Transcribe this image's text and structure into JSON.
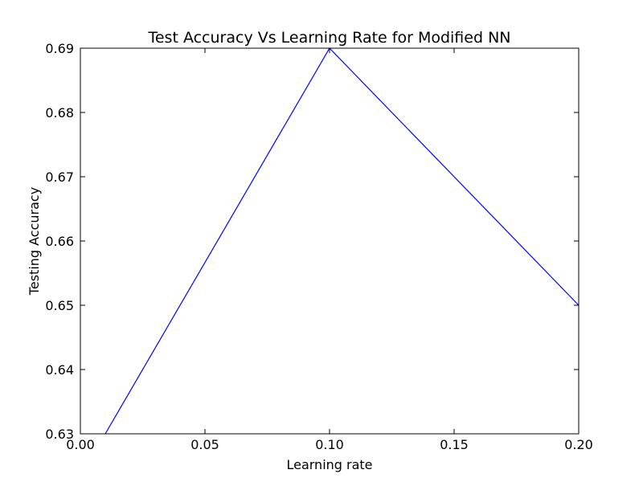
{
  "chart_data": {
    "type": "line",
    "title": "Test Accuracy Vs Learning Rate for Modified NN",
    "xlabel": "Learning rate",
    "ylabel": "Testing Accuracy",
    "xlim": [
      0.0,
      0.2
    ],
    "ylim": [
      0.63,
      0.69
    ],
    "grid": false,
    "x_ticks": [
      0.0,
      0.05,
      0.1,
      0.15,
      0.2
    ],
    "x_tick_labels": [
      "0.00",
      "0.05",
      "0.10",
      "0.15",
      "0.20"
    ],
    "y_ticks": [
      0.63,
      0.64,
      0.65,
      0.66,
      0.67,
      0.68,
      0.69
    ],
    "y_tick_labels": [
      "0.63",
      "0.64",
      "0.65",
      "0.66",
      "0.67",
      "0.68",
      "0.69"
    ],
    "series": [
      {
        "color": "#0000ff",
        "x": [
          0.01,
          0.1,
          0.2
        ],
        "y": [
          0.63,
          0.69,
          0.65
        ]
      }
    ]
  }
}
